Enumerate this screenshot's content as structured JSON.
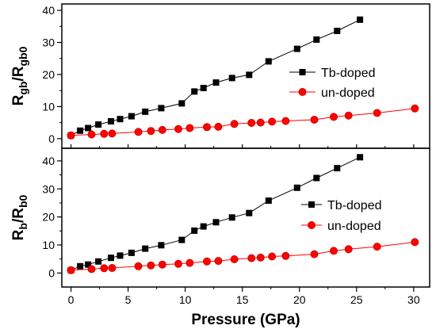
{
  "chart_data": [
    {
      "type": "line",
      "ylabel": [
        {
          "t": "R"
        },
        {
          "t": "gb",
          "sub": true
        },
        {
          "t": "/R"
        },
        {
          "t": "gb0",
          "sub": true
        }
      ],
      "xlabel": "",
      "xlim": [
        -0.8,
        31.4
      ],
      "ylim": [
        -3,
        42
      ],
      "xticks": [
        0,
        5,
        10,
        15,
        20,
        25,
        30
      ],
      "xtick_labels_shown": false,
      "yticks": [
        0,
        10,
        20,
        30,
        40
      ],
      "grid": false,
      "legend": "right-center",
      "series": [
        {
          "name": "Tb-doped",
          "color": "#000000",
          "marker": "square",
          "x": [
            0,
            0.8,
            1.5,
            2.4,
            3.5,
            4.3,
            5.3,
            6.5,
            7.9,
            9.7,
            10.8,
            11.6,
            12.7,
            14.1,
            15.6,
            17.3,
            19.8,
            21.5,
            23.3,
            25.3
          ],
          "y": [
            1.0,
            2.5,
            3.3,
            4.4,
            5.4,
            6.1,
            7.0,
            8.4,
            9.5,
            11.0,
            14.7,
            15.8,
            17.5,
            18.9,
            19.9,
            24.1,
            28.0,
            30.9,
            33.6,
            37.1
          ]
        },
        {
          "name": "un-doped",
          "color": "#ff0000",
          "marker": "circle",
          "x": [
            0,
            1.8,
            2.9,
            3.6,
            5.9,
            7.0,
            8.0,
            9.4,
            10.4,
            11.9,
            12.9,
            14.3,
            15.8,
            16.6,
            17.6,
            18.8,
            21.3,
            23.0,
            24.3,
            26.8,
            30.1
          ],
          "y": [
            1.0,
            1.3,
            1.5,
            1.6,
            2.1,
            2.4,
            2.7,
            3.0,
            3.3,
            3.6,
            3.7,
            4.6,
            4.9,
            5.0,
            5.3,
            5.5,
            5.9,
            6.8,
            7.2,
            8.0,
            9.4
          ]
        }
      ]
    },
    {
      "type": "line",
      "ylabel": [
        {
          "t": "R"
        },
        {
          "t": "b",
          "sub": true
        },
        {
          "t": "/R"
        },
        {
          "t": "b0",
          "sub": true
        }
      ],
      "xlabel": "Pressure (GPa)",
      "xlim": [
        -0.8,
        31.4
      ],
      "ylim": [
        -5,
        44.5
      ],
      "xticks": [
        0,
        5,
        10,
        15,
        20,
        25,
        30
      ],
      "xtick_labels_shown": true,
      "yticks": [
        0,
        10,
        20,
        30,
        40
      ],
      "grid": false,
      "legend": "right-center",
      "series": [
        {
          "name": "Tb-doped",
          "color": "#000000",
          "marker": "square",
          "x": [
            0,
            0.8,
            1.5,
            2.4,
            3.5,
            4.3,
            5.3,
            6.5,
            7.9,
            9.7,
            10.8,
            11.6,
            12.7,
            14.1,
            15.6,
            17.3,
            19.8,
            21.5,
            23.3,
            25.3
          ],
          "y": [
            1.0,
            2.4,
            3.0,
            4.1,
            5.4,
            6.2,
            7.2,
            8.7,
            9.9,
            11.8,
            15.1,
            16.6,
            18.1,
            19.8,
            21.4,
            25.8,
            30.4,
            33.9,
            37.4,
            41.3
          ]
        },
        {
          "name": "un-doped",
          "color": "#ff0000",
          "marker": "circle",
          "x": [
            0,
            1.8,
            2.9,
            3.6,
            5.9,
            7.0,
            8.0,
            9.4,
            10.4,
            11.9,
            12.9,
            14.3,
            15.8,
            16.6,
            17.6,
            18.8,
            21.3,
            23.0,
            24.3,
            26.8,
            30.1
          ],
          "y": [
            1.0,
            1.4,
            1.7,
            1.8,
            2.4,
            2.7,
            3.0,
            3.3,
            3.6,
            4.1,
            4.3,
            4.9,
            5.3,
            5.5,
            5.9,
            6.1,
            6.7,
            7.9,
            8.5,
            9.4,
            11.0
          ]
        }
      ]
    }
  ]
}
